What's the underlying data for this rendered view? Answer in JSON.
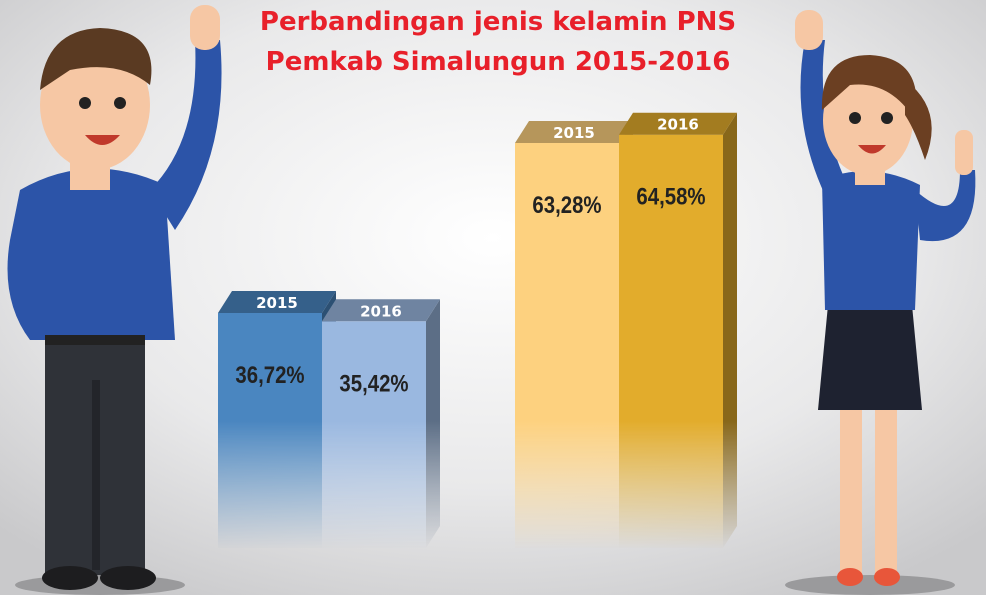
{
  "chart_data": {
    "type": "bar3d",
    "title": "Perbandingan jenis kelamin PNS",
    "subtitle": "Pemkab Simalungun 2015-2016",
    "series": [
      {
        "name": "2015",
        "colors": [
          "#4a86c0",
          "#fdd17f"
        ],
        "values": [
          36.72,
          63.28
        ],
        "value_labels": [
          "36,72%",
          "63,28%"
        ]
      },
      {
        "name": "2016",
        "colors": [
          "#9ab8e0",
          "#e2ac2c"
        ],
        "values": [
          35.42,
          64.58
        ],
        "value_labels": [
          "35,42%",
          "64,58%"
        ]
      }
    ]
  }
}
